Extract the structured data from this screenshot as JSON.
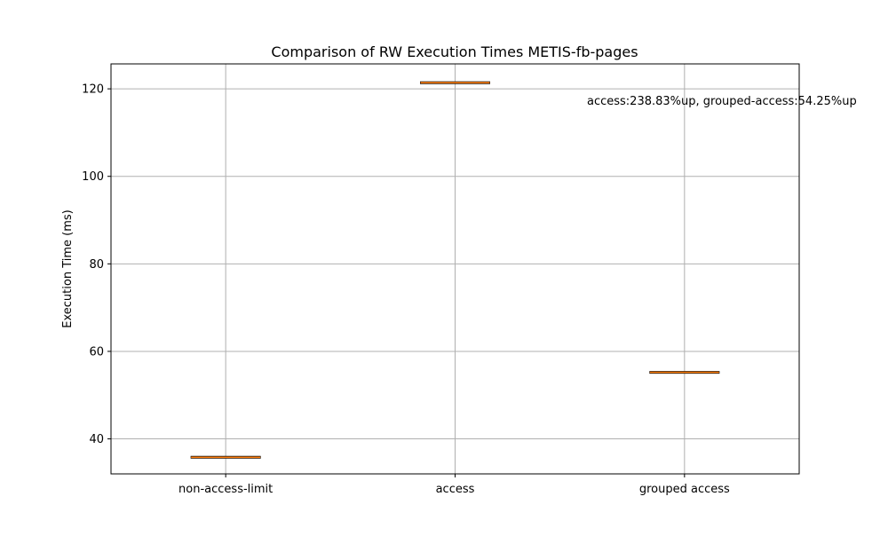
{
  "chart_data": {
    "type": "box",
    "title": "Comparison of RW Execution Times METIS-fb-pages",
    "xlabel": "",
    "ylabel": "Execution Time (ms)",
    "categories": [
      "non-access-limit",
      "access",
      "grouped access"
    ],
    "values": [
      35.8,
      121.4,
      55.2
    ],
    "ylim": [
      32,
      125.7
    ],
    "yticks": [
      40,
      60,
      80,
      100,
      120
    ],
    "grid": true,
    "annotation": "access:238.83%up, grouped-access:54.25%up",
    "colors": {
      "median": "#ff7f0e",
      "box": "#000000",
      "grid": "#b0b0b0"
    }
  }
}
